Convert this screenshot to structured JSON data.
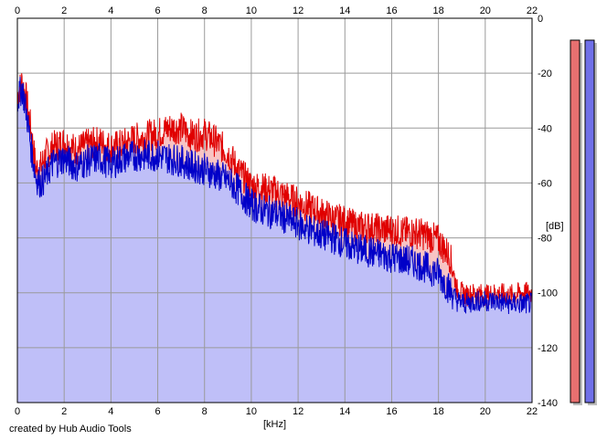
{
  "chart_data": {
    "type": "area",
    "x_unit": "[kHz]",
    "y_unit": "[dB]",
    "xlim": [
      0,
      22
    ],
    "ylim": [
      -140,
      0
    ],
    "x_ticks": [
      "0",
      "2",
      "4",
      "6",
      "8",
      "10",
      "12",
      "14",
      "16",
      "18",
      "20",
      "22"
    ],
    "y_ticks": [
      "0",
      "-20",
      "-40",
      "-60",
      "-80",
      "-100",
      "-120",
      "-140"
    ],
    "grid": true,
    "series": [
      {
        "color": "#e00000",
        "fill": "#f8c4c4",
        "x": [
          0,
          0.2,
          0.4,
          0.6,
          0.8,
          1.0,
          1.2,
          1.5,
          2.0,
          2.5,
          3.0,
          3.5,
          4.0,
          4.5,
          5.0,
          5.5,
          6.0,
          6.5,
          7.0,
          7.5,
          8.0,
          8.5,
          9.0,
          9.5,
          10.0,
          10.5,
          11.0,
          11.5,
          12.0,
          12.5,
          13.0,
          13.5,
          14.0,
          14.5,
          15.0,
          15.5,
          16.0,
          16.5,
          17.0,
          17.5,
          18.0,
          18.5,
          18.8,
          19.2,
          19.6,
          20.0,
          20.5,
          21.0,
          21.5,
          22.0
        ],
        "y": [
          -28,
          -23,
          -30,
          -42,
          -55,
          -54,
          -50,
          -47,
          -45,
          -48,
          -46,
          -45,
          -47,
          -46,
          -44,
          -43,
          -42,
          -40,
          -40,
          -43,
          -42,
          -45,
          -49,
          -56,
          -61,
          -62,
          -63,
          -65,
          -67,
          -69,
          -71,
          -73,
          -74,
          -76,
          -76,
          -77,
          -77,
          -78,
          -78,
          -79,
          -81,
          -87,
          -99,
          -101,
          -100,
          -101,
          -100,
          -101,
          -100,
          -100
        ]
      },
      {
        "color": "#0000c8",
        "fill": "#bfbff8",
        "x": [
          0,
          0.2,
          0.4,
          0.6,
          0.8,
          1.0,
          1.2,
          1.5,
          2.0,
          2.5,
          3.0,
          3.5,
          4.0,
          4.5,
          5.0,
          5.5,
          6.0,
          6.5,
          7.0,
          7.5,
          8.0,
          8.5,
          9.0,
          9.5,
          10.0,
          10.5,
          11.0,
          11.5,
          12.0,
          12.5,
          13.0,
          13.5,
          14.0,
          14.5,
          15.0,
          15.5,
          16.0,
          16.5,
          17.0,
          17.5,
          18.0,
          18.5,
          18.8,
          19.2,
          19.6,
          20.0,
          20.5,
          21.0,
          21.5,
          22.0
        ],
        "y": [
          -30,
          -25,
          -35,
          -48,
          -58,
          -60,
          -58,
          -53,
          -51,
          -54,
          -52,
          -51,
          -53,
          -51,
          -50,
          -50,
          -50,
          -51,
          -52,
          -54,
          -55,
          -57,
          -59,
          -63,
          -68,
          -70,
          -71,
          -73,
          -75,
          -77,
          -79,
          -80,
          -82,
          -84,
          -85,
          -86,
          -87,
          -88,
          -89,
          -91,
          -93,
          -99,
          -103,
          -104,
          -103,
          -103,
          -103,
          -104,
          -104,
          -104
        ]
      }
    ],
    "level_meters": [
      {
        "color": "#e87070",
        "value_db": 0
      },
      {
        "color": "#7070e8",
        "value_db": 0
      }
    ]
  },
  "footer": {
    "credit": "created by Hub Audio Tools"
  }
}
